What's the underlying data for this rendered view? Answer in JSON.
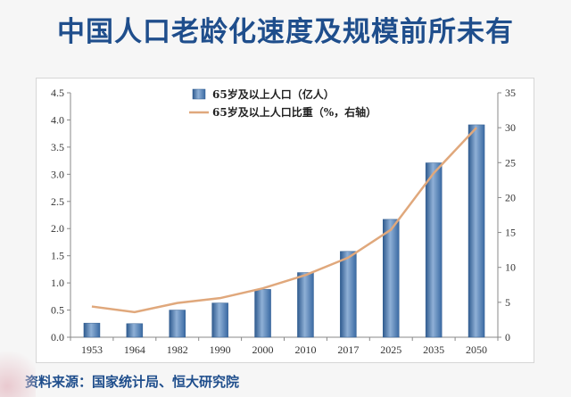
{
  "page": {
    "title": "中国人口老龄化速度及规模前所未有",
    "source": "资料来源：国家统计局、恒大研究院"
  },
  "chart_data": {
    "type": "bar",
    "categories": [
      "1953",
      "1964",
      "1982",
      "1990",
      "2000",
      "2010",
      "2017",
      "2025",
      "2035",
      "2050"
    ],
    "series": [
      {
        "name": "65岁及以上人口（亿人）",
        "kind": "bar",
        "axis": "left",
        "color": "#4f81bd",
        "values": [
          0.26,
          0.25,
          0.5,
          0.63,
          0.88,
          1.19,
          1.58,
          2.17,
          3.21,
          3.91
        ]
      },
      {
        "name": "65岁及以上人口比重（%，右轴）",
        "kind": "line",
        "axis": "right",
        "color": "#e0a87c",
        "values": [
          4.4,
          3.6,
          4.9,
          5.6,
          7.0,
          8.9,
          11.4,
          15.4,
          23.5,
          30.0
        ]
      }
    ],
    "y_left": {
      "lim": [
        0,
        4.5
      ],
      "ticks": [
        "0.0",
        "0.5",
        "1.0",
        "1.5",
        "2.0",
        "2.5",
        "3.0",
        "3.5",
        "4.0",
        "4.5"
      ]
    },
    "y_right": {
      "lim": [
        0,
        35
      ],
      "ticks": [
        "0",
        "5",
        "10",
        "15",
        "20",
        "25",
        "30",
        "35"
      ]
    },
    "grid": false,
    "legend": "top-left"
  }
}
